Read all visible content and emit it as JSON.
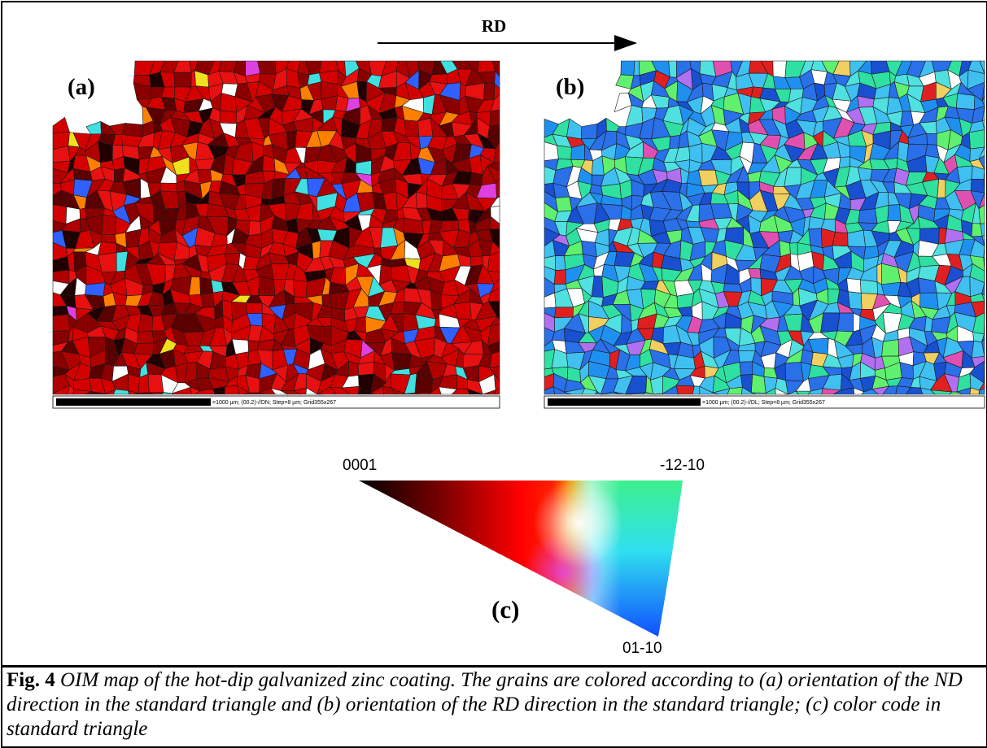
{
  "figure": {
    "arrow_label": "RD",
    "panel_a_label": "(a)",
    "panel_b_label": "(b)",
    "panel_c_label": "(c)",
    "scale_bar_a": "=1000 µm; (00.2)-//DN; Step=8 µm; Grid355x267",
    "scale_bar_b": "=1000 µm; (00.2)-//DL; Step=8 µm; Grid355x267",
    "triangle_corners": {
      "left": "0001",
      "right": "-12-10",
      "bottom": "01-10"
    }
  },
  "caption": {
    "label": "Fig. 4",
    "text": "OIM map of the hot-dip galvanized zinc coating. The grains are colored according to (a) orientation of the ND direction in the standard triangle and (b) orientation of the RD direction in the standard triangle; (c) color code in standard triangle"
  }
}
